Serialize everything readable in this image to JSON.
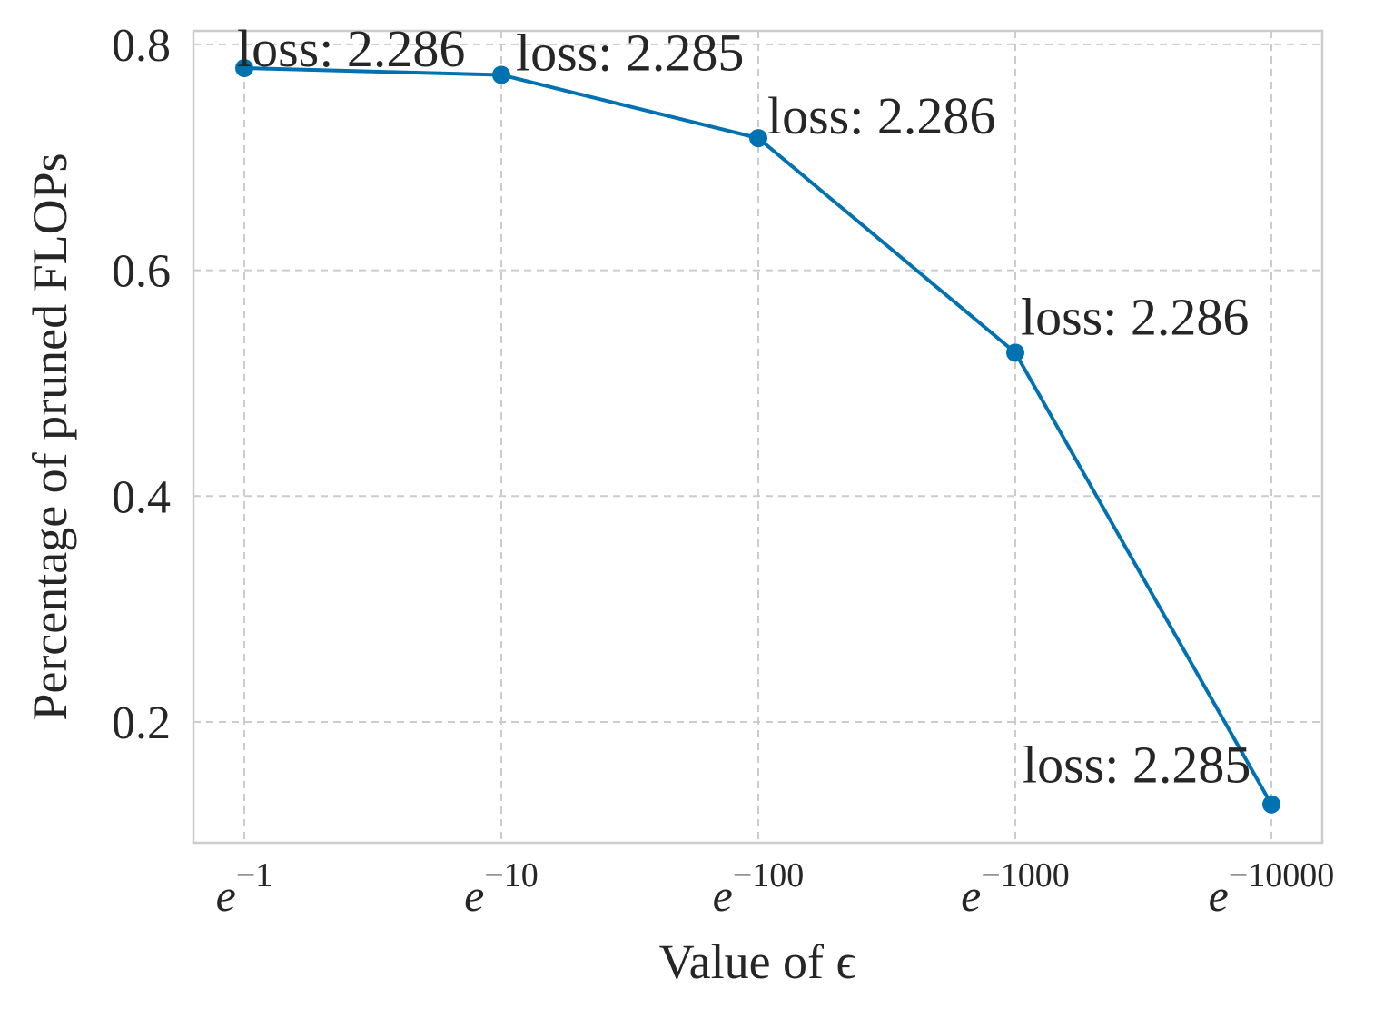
{
  "chart_data": {
    "type": "line",
    "xlabel": "Value of ϵ",
    "ylabel": "Percentage of pruned FLOPs",
    "x_scale": "log",
    "x_tick_labels": [
      {
        "base": "e",
        "exp": "−1"
      },
      {
        "base": "e",
        "exp": "−10"
      },
      {
        "base": "e",
        "exp": "−100"
      },
      {
        "base": "e",
        "exp": "−1000"
      },
      {
        "base": "e",
        "exp": "−10000"
      }
    ],
    "y_ticks": [
      "0.2",
      "0.4",
      "0.6",
      "0.8"
    ],
    "y_tick_values": [
      0.2,
      0.4,
      0.6,
      0.8
    ],
    "ylim": [
      0.093,
      0.812
    ],
    "grid": true,
    "legend": "none",
    "color": "#0072b2",
    "series": [
      {
        "values": [
          0.779,
          0.773,
          0.717,
          0.527,
          0.127
        ],
        "labels": [
          "loss: 2.286",
          "loss: 2.285",
          "loss: 2.286",
          "loss: 2.286",
          "loss: 2.285"
        ]
      }
    ]
  }
}
